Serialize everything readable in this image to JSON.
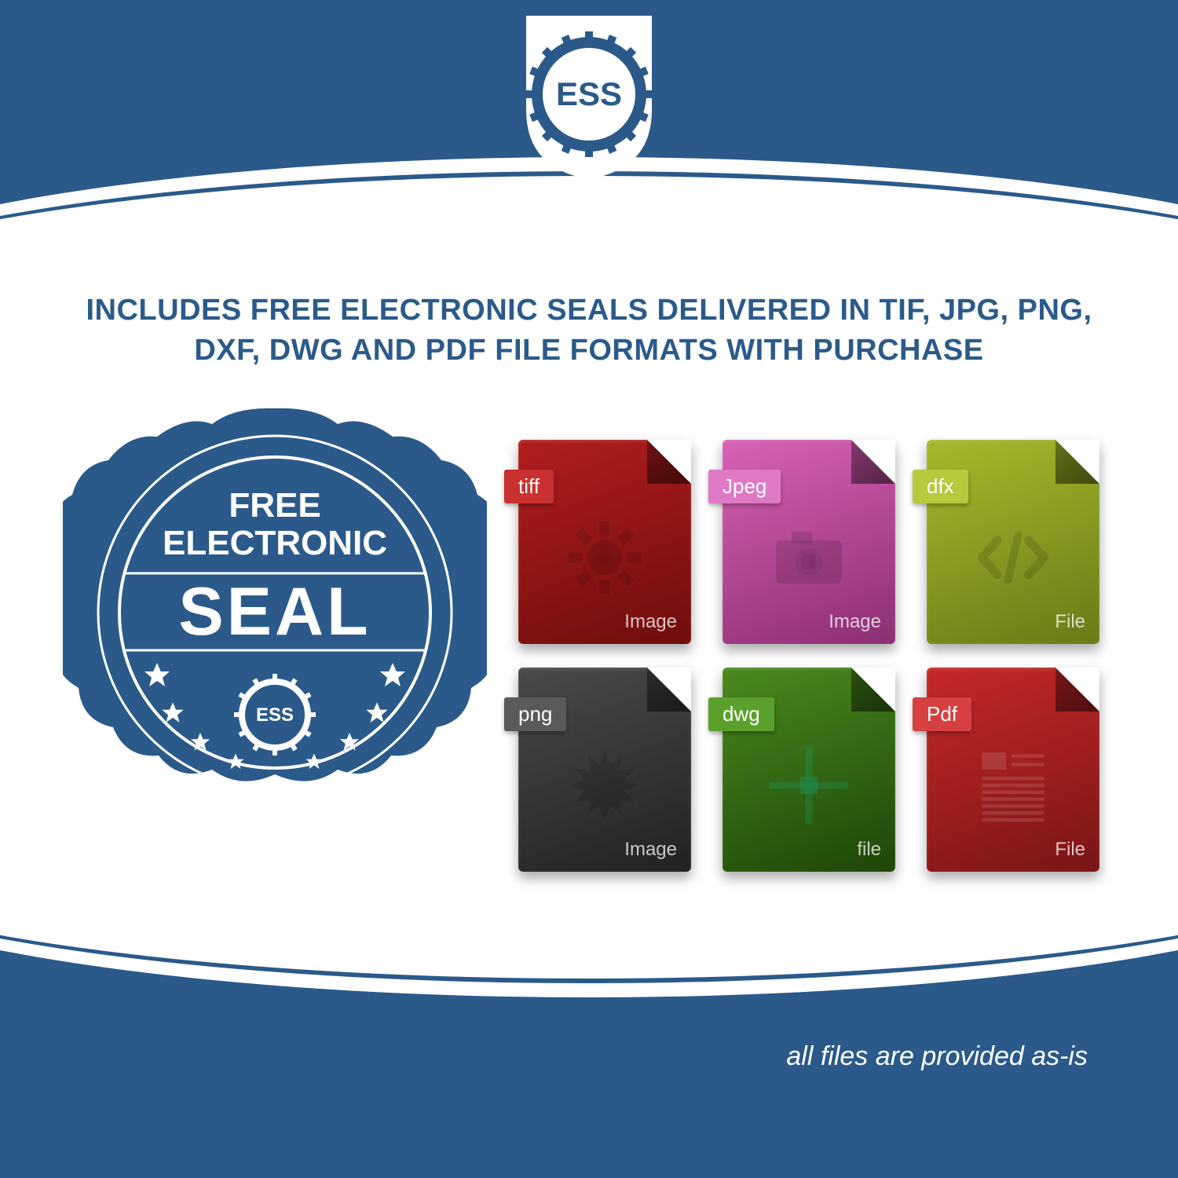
{
  "colors": {
    "brand_blue": "#2b5a8a",
    "white": "#ffffff"
  },
  "logo": {
    "text": "ESS"
  },
  "headline": "INCLUDES FREE ELECTRONIC SEALS DELIVERED IN TIF, JPG, PNG, DXF, DWG AND PDF FILE FORMATS WITH PURCHASE",
  "seal": {
    "line1": "FREE",
    "line2": "ELECTRONIC",
    "line3": "SEAL",
    "inner_logo": "ESS",
    "fill": "#2b5a8a",
    "text_color": "#ffffff"
  },
  "files": [
    {
      "format_label": "tiff",
      "sub_label": "Image",
      "body_color_top": "#b21e1e",
      "body_color_bottom": "#6f0d0d",
      "tab_color": "#c93030",
      "glyph": "gear"
    },
    {
      "format_label": "Jpeg",
      "sub_label": "Image",
      "body_color_top": "#d861b5",
      "body_color_bottom": "#8c2f73",
      "tab_color": "#e079c5",
      "glyph": "camera"
    },
    {
      "format_label": "dfx",
      "sub_label": "File",
      "body_color_top": "#a7b82c",
      "body_color_bottom": "#6b7a16",
      "tab_color": "#b7c93c",
      "glyph": "code"
    },
    {
      "format_label": "png",
      "sub_label": "Image",
      "body_color_top": "#4a4a4a",
      "body_color_bottom": "#222222",
      "tab_color": "#5a5a5a",
      "glyph": "starburst"
    },
    {
      "format_label": "dwg",
      "sub_label": "file",
      "body_color_top": "#4a8a1e",
      "body_color_bottom": "#1e4609",
      "tab_color": "#5aa12c",
      "glyph": "crosshair"
    },
    {
      "format_label": "Pdf",
      "sub_label": "File",
      "body_color_top": "#c62828",
      "body_color_bottom": "#7a1515",
      "tab_color": "#d64040",
      "glyph": "doc-lines"
    }
  ],
  "footer_note": "all files are provided as-is"
}
